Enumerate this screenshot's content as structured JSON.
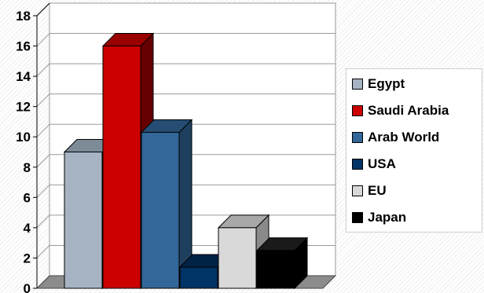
{
  "chart_data": {
    "type": "bar",
    "categories": [
      "Egypt",
      "Saudi Arabia",
      "Arab World",
      "USA",
      "EU",
      "Japan"
    ],
    "values": [
      9,
      16,
      10.3,
      1.4,
      4,
      2.5
    ],
    "colors": [
      "#a5b3c2",
      "#cc0000",
      "#336699",
      "#003366",
      "#d9d9d9",
      "#000000"
    ],
    "side_colors": [
      "#6a7a8a",
      "#660000",
      "#1f3f5f",
      "#001a33",
      "#8a8a8a",
      "#000000"
    ],
    "top_colors": [
      "#7d8b99",
      "#990000",
      "#264d73",
      "#002244",
      "#a8a8a8",
      "#1a1a1a"
    ],
    "yticks": [
      "0",
      "2",
      "4",
      "6",
      "8",
      "10",
      "12",
      "14",
      "16",
      "18"
    ],
    "ylim": [
      0,
      18
    ],
    "grid": true,
    "legend_position": "right",
    "title": "",
    "xlabel": "",
    "ylabel": ""
  },
  "legend": {
    "items": [
      {
        "label": "Egypt",
        "color": "#a5b3c2"
      },
      {
        "label": "Saudi Arabia",
        "color": "#cc0000"
      },
      {
        "label": "Arab World",
        "color": "#336699"
      },
      {
        "label": "USA",
        "color": "#003366"
      },
      {
        "label": "EU",
        "color": "#d9d9d9"
      },
      {
        "label": "Japan",
        "color": "#000000"
      }
    ]
  }
}
